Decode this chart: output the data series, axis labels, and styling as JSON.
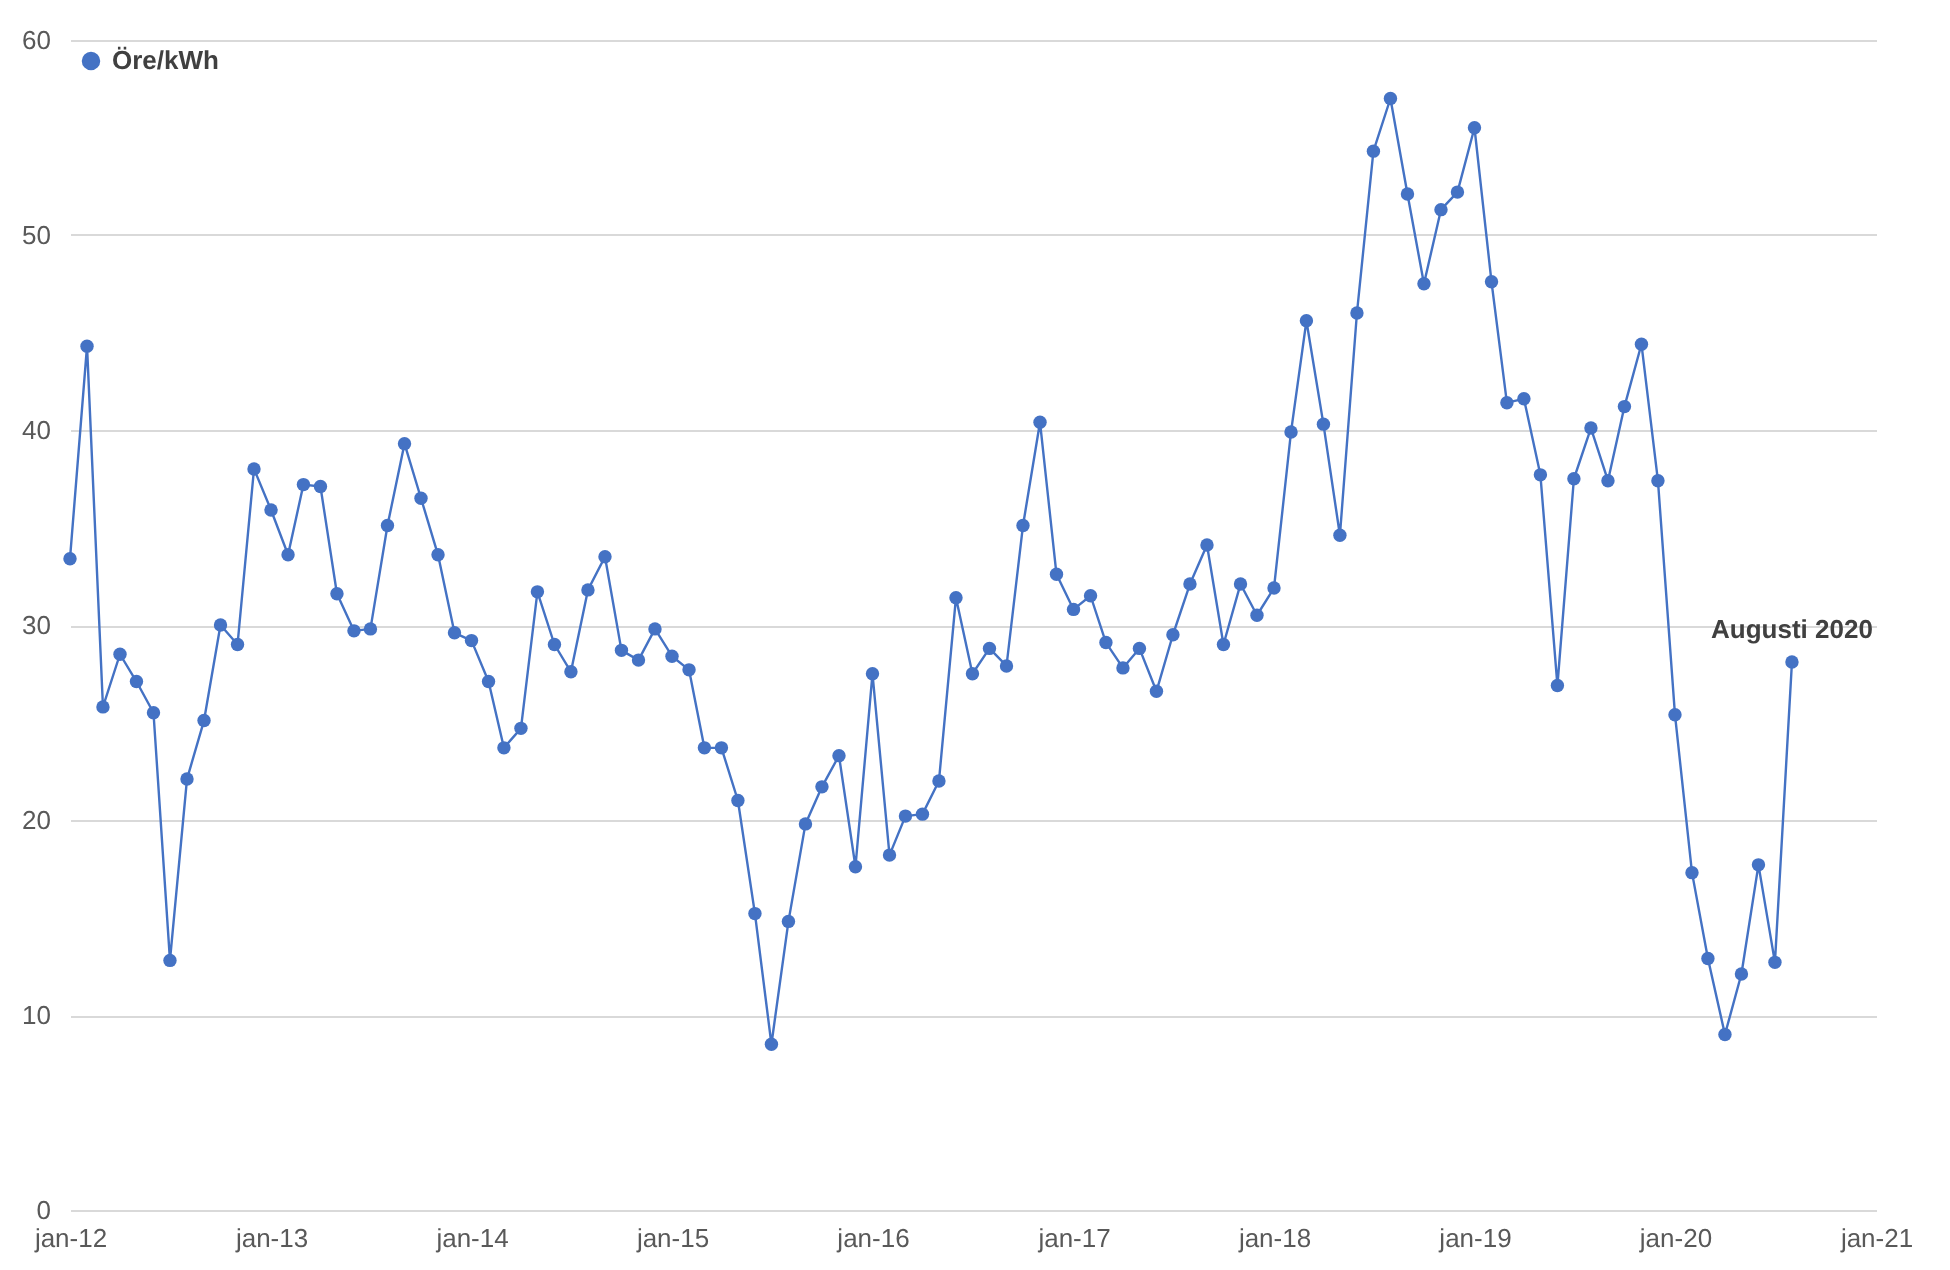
{
  "chart_data": {
    "type": "line",
    "x": [
      "2012-01",
      "2012-02",
      "2012-03",
      "2012-04",
      "2012-05",
      "2012-06",
      "2012-07",
      "2012-08",
      "2012-09",
      "2012-10",
      "2012-11",
      "2012-12",
      "2013-01",
      "2013-02",
      "2013-03",
      "2013-04",
      "2013-05",
      "2013-06",
      "2013-07",
      "2013-08",
      "2013-09",
      "2013-10",
      "2013-11",
      "2013-12",
      "2014-01",
      "2014-02",
      "2014-03",
      "2014-04",
      "2014-05",
      "2014-06",
      "2014-07",
      "2014-08",
      "2014-09",
      "2014-10",
      "2014-11",
      "2014-12",
      "2015-01",
      "2015-02",
      "2015-03",
      "2015-04",
      "2015-05",
      "2015-06",
      "2015-07",
      "2015-08",
      "2015-09",
      "2015-10",
      "2015-11",
      "2015-12",
      "2016-01",
      "2016-02",
      "2016-03",
      "2016-04",
      "2016-05",
      "2016-06",
      "2016-07",
      "2016-08",
      "2016-09",
      "2016-10",
      "2016-11",
      "2016-12",
      "2017-01",
      "2017-02",
      "2017-03",
      "2017-04",
      "2017-05",
      "2017-06",
      "2017-07",
      "2017-08",
      "2017-09",
      "2017-10",
      "2017-11",
      "2017-12",
      "2018-01",
      "2018-02",
      "2018-03",
      "2018-04",
      "2018-05",
      "2018-06",
      "2018-07",
      "2018-08",
      "2018-09",
      "2018-10",
      "2018-11",
      "2018-12",
      "2019-01",
      "2019-02",
      "2019-03",
      "2019-04",
      "2019-05",
      "2019-06",
      "2019-07",
      "2019-08",
      "2019-09",
      "2019-10",
      "2019-11",
      "2019-12",
      "2020-01",
      "2020-02",
      "2020-03",
      "2020-04",
      "2020-05",
      "2020-06",
      "2020-07",
      "2020-08"
    ],
    "series": [
      {
        "name": "Öre/kWh",
        "color": "#4472c4",
        "values": [
          33.4,
          44.3,
          25.8,
          28.5,
          27.1,
          25.5,
          12.8,
          22.1,
          25.1,
          30.0,
          29.0,
          38.0,
          35.9,
          33.6,
          37.2,
          37.1,
          31.6,
          29.7,
          29.8,
          35.1,
          39.3,
          36.5,
          33.6,
          29.6,
          29.2,
          27.1,
          23.7,
          24.7,
          31.7,
          29.0,
          27.6,
          31.8,
          33.5,
          28.7,
          28.2,
          29.8,
          28.4,
          27.7,
          23.7,
          23.7,
          21.0,
          15.2,
          8.5,
          14.8,
          19.8,
          21.7,
          23.3,
          17.6,
          27.5,
          18.2,
          20.2,
          20.3,
          22.0,
          31.4,
          27.5,
          28.8,
          27.9,
          35.1,
          40.4,
          32.6,
          30.8,
          31.5,
          29.1,
          27.8,
          28.8,
          26.6,
          29.5,
          32.1,
          34.1,
          29.0,
          32.1,
          30.5,
          31.9,
          39.9,
          45.6,
          40.3,
          34.6,
          46.0,
          54.3,
          57.0,
          52.1,
          47.5,
          51.3,
          52.2,
          55.5,
          47.6,
          41.4,
          41.6,
          37.7,
          26.9,
          37.5,
          40.1,
          37.4,
          41.2,
          44.4,
          37.4,
          25.4,
          17.3,
          12.9,
          9.0,
          12.1,
          17.7,
          12.7,
          28.1
        ]
      }
    ],
    "xlim": [
      "2012-01",
      "2021-01"
    ],
    "xticks": [
      {
        "value": "2012-01",
        "label": "jan-12"
      },
      {
        "value": "2013-01",
        "label": "jan-13"
      },
      {
        "value": "2014-01",
        "label": "jan-14"
      },
      {
        "value": "2015-01",
        "label": "jan-15"
      },
      {
        "value": "2016-01",
        "label": "jan-16"
      },
      {
        "value": "2017-01",
        "label": "jan-17"
      },
      {
        "value": "2018-01",
        "label": "jan-18"
      },
      {
        "value": "2019-01",
        "label": "jan-19"
      },
      {
        "value": "2020-01",
        "label": "jan-20"
      },
      {
        "value": "2021-01",
        "label": "jan-21"
      }
    ],
    "ylim": [
      0,
      60
    ],
    "yticks": [
      0,
      10,
      20,
      30,
      40,
      50,
      60
    ],
    "grid": "y",
    "legend": "top left",
    "marker": "circle",
    "line_style": "solid",
    "annotations": [
      {
        "text": "Augusti 2020",
        "x": "2020-08",
        "y": 28.1
      }
    ]
  }
}
